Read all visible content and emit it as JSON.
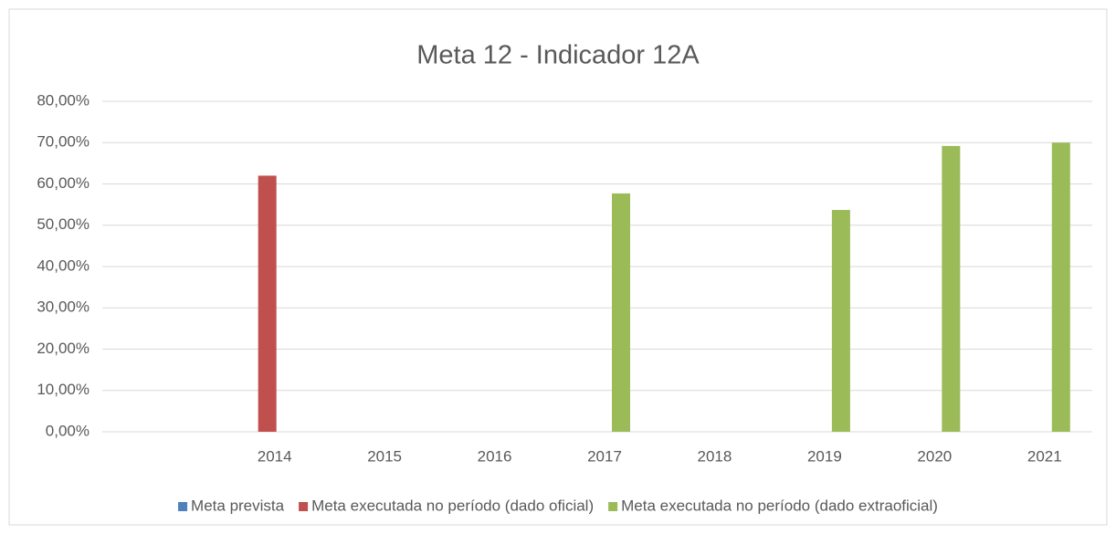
{
  "chart_data": {
    "type": "bar",
    "title": "Meta 12 - Indicador 12A",
    "categories": [
      null,
      "2014",
      "2015",
      "2016",
      "2017",
      "2018",
      "2019",
      "2020",
      "2021"
    ],
    "series": [
      {
        "name": "Meta prevista",
        "color": "#4f81bd",
        "values": [
          null,
          null,
          null,
          null,
          null,
          null,
          null,
          null,
          null
        ]
      },
      {
        "name": "Meta executada no período (dado oficial)",
        "color": "#c0504d",
        "values": [
          null,
          62,
          null,
          null,
          null,
          null,
          null,
          null,
          null
        ]
      },
      {
        "name": "Meta executada no período (dado extraoficial)",
        "color": "#9bbb59",
        "values": [
          null,
          null,
          null,
          null,
          57.7,
          null,
          53.7,
          69.2,
          70
        ]
      }
    ],
    "ylim": [
      0,
      80
    ],
    "yticks": [
      {
        "value": 0,
        "label": "0,00%"
      },
      {
        "value": 10,
        "label": "10,00%"
      },
      {
        "value": 20,
        "label": "20,00%"
      },
      {
        "value": 30,
        "label": "30,00%"
      },
      {
        "value": 40,
        "label": "40,00%"
      },
      {
        "value": 50,
        "label": "50,00%"
      },
      {
        "value": 60,
        "label": "60,00%"
      },
      {
        "value": 70,
        "label": "70,00%"
      },
      {
        "value": 80,
        "label": "80,00%"
      }
    ],
    "grid": true,
    "legend": "bottom"
  }
}
